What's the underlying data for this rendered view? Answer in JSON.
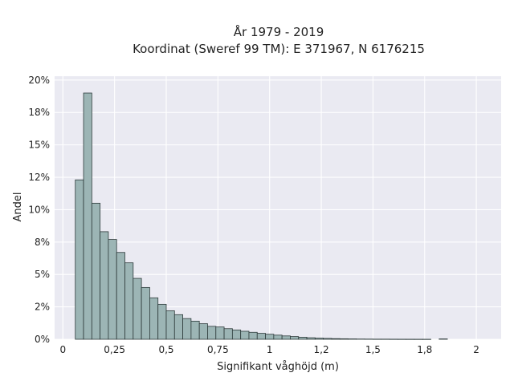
{
  "chart_data": {
    "type": "bar",
    "title": "År 1979 - 2019",
    "subtitle": "Koordinat (Sweref 99 TM): E 371967, N 6176215",
    "xlabel": "Signifikant våghöjd (m)",
    "ylabel": "Andel",
    "xlim": [
      -0.04,
      2.12
    ],
    "ylim": [
      0,
      0.203
    ],
    "x_ticks": [
      0,
      0.25,
      0.5,
      0.75,
      1,
      1.25,
      1.5,
      1.75,
      2
    ],
    "x_tick_labels": [
      "0",
      "0,25",
      "0,5",
      "0,75",
      "1",
      "1,2",
      "1,5",
      "1,8",
      "2"
    ],
    "y_ticks": [
      0,
      0.025,
      0.05,
      0.075,
      0.1,
      0.125,
      0.15,
      0.175,
      0.2
    ],
    "y_tick_labels": [
      "0%",
      "2%",
      "5%",
      "8%",
      "10%",
      "12%",
      "15%",
      "18%",
      "20%"
    ],
    "grid": true,
    "legend": "none",
    "bin_width": 0.04,
    "bin_starts": [
      0.06,
      0.1,
      0.14,
      0.18,
      0.22,
      0.26,
      0.3,
      0.34,
      0.38,
      0.42,
      0.46,
      0.5,
      0.54,
      0.58,
      0.62,
      0.66,
      0.7,
      0.74,
      0.78,
      0.82,
      0.86,
      0.9,
      0.94,
      0.98,
      1.02,
      1.06,
      1.1,
      1.14,
      1.18,
      1.22,
      1.26,
      1.3,
      1.34,
      1.38,
      1.42,
      1.46,
      1.5,
      1.54,
      1.58,
      1.62,
      1.66,
      1.7,
      1.74,
      1.78,
      1.82
    ],
    "values": [
      0.123,
      0.19,
      0.105,
      0.083,
      0.077,
      0.067,
      0.059,
      0.047,
      0.04,
      0.032,
      0.027,
      0.022,
      0.019,
      0.016,
      0.014,
      0.012,
      0.01,
      0.0095,
      0.0082,
      0.0072,
      0.0062,
      0.0054,
      0.0046,
      0.0039,
      0.0032,
      0.0026,
      0.0021,
      0.0016,
      0.0012,
      0.0009,
      0.0007,
      0.0005,
      0.0004,
      0.0003,
      0.0002,
      0.00015,
      0.0001,
      0.0001,
      7e-05,
      5e-05,
      4e-05,
      3e-05,
      2e-05,
      0.0,
      0.0003
    ],
    "colors": {
      "bar_fill": "#9cb5b5",
      "bar_edge": "#2e3b3b",
      "plot_background": "#eaeaf2",
      "grid": "#ffffff"
    }
  }
}
